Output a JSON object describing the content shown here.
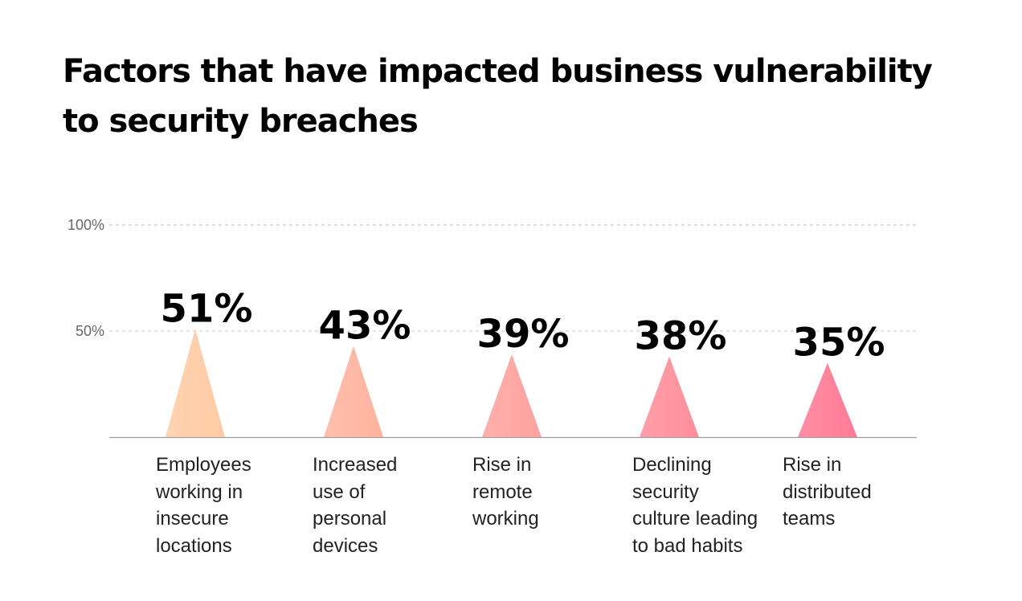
{
  "chart_data": {
    "type": "bar",
    "title": "Factors that have impacted business vulnerability to security breaches",
    "categories": [
      [
        "Employees",
        "working in",
        "insecure",
        "locations"
      ],
      [
        "Increased",
        "use of",
        "personal",
        "devices"
      ],
      [
        "Rise in",
        "remote",
        "working"
      ],
      [
        "Declining",
        "security",
        "culture leading",
        "to bad habits"
      ],
      [
        "Rise in",
        "distributed",
        "teams"
      ]
    ],
    "values": [
      51,
      43,
      39,
      38,
      35
    ],
    "value_labels": [
      "51%",
      "43%",
      "39%",
      "38%",
      "35%"
    ],
    "ylim": [
      0,
      100
    ],
    "yticks": [
      {
        "value": 100,
        "label": "100%"
      },
      {
        "value": 50,
        "label": "50%"
      }
    ],
    "grid": true,
    "bar_colors": [
      "#ffcba4",
      "#ffb39e",
      "#ffa29e",
      "#ff8e9a",
      "#ff7a96"
    ],
    "value_label_color": "#000000"
  }
}
